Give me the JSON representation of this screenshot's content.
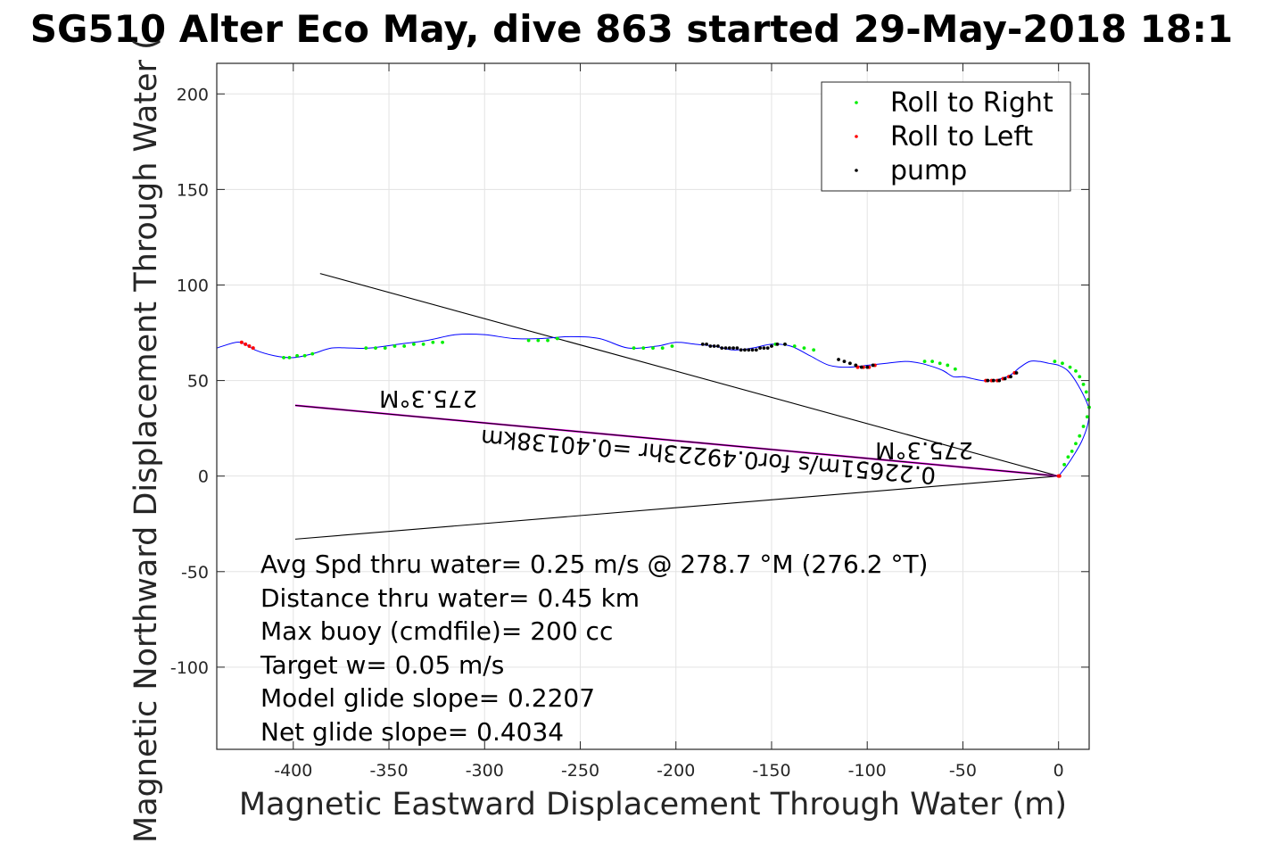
{
  "chart_data": {
    "type": "scatter",
    "title": "SG510 Alter Eco May, dive 863 started 29-May-2018 18:1",
    "xlabel": "Magnetic Eastward Displacement Through Water (m)",
    "ylabel": "Magnetic Northward Displacement Through Water (",
    "xlim": [
      -440,
      16
    ],
    "ylim": [
      -143,
      216
    ],
    "xticks": [
      -400,
      -350,
      -300,
      -250,
      -200,
      -150,
      -100,
      -50,
      0
    ],
    "yticks": [
      200,
      150,
      100,
      50,
      0,
      -50,
      -100
    ],
    "grid": true,
    "legend_position": "top-right",
    "legend": [
      {
        "name": "Roll to Right",
        "color": "#00ee00"
      },
      {
        "name": "Roll to Left",
        "color": "#ff0000"
      },
      {
        "name": "pump",
        "color": "#000000"
      }
    ],
    "track": {
      "name": "dive track",
      "color": "#0000ff",
      "x": [
        -440,
        -430,
        -425,
        -420,
        -410,
        -400,
        -390,
        -380,
        -370,
        -360,
        -345,
        -330,
        -315,
        -300,
        -285,
        -270,
        -255,
        -240,
        -225,
        -210,
        -200,
        -190,
        -180,
        -170,
        -160,
        -150,
        -140,
        -130,
        -120,
        -110,
        -100,
        -90,
        -80,
        -72,
        -65,
        -60,
        -55,
        -50,
        -45,
        -40,
        -35,
        -30,
        -25,
        -20,
        -15,
        -10,
        -5,
        0,
        5,
        10,
        15,
        16,
        15,
        12,
        8,
        4,
        0
      ],
      "y": [
        67,
        70,
        69,
        66,
        63,
        62,
        64,
        67,
        67,
        67,
        69,
        71,
        74,
        74,
        72,
        72,
        73,
        72,
        67,
        68,
        70,
        69,
        68,
        66,
        67,
        69,
        68,
        63,
        58,
        57,
        58,
        59,
        60,
        59,
        57,
        55,
        52,
        52,
        51,
        50,
        50,
        51,
        53,
        57,
        60,
        60,
        59,
        58,
        55,
        48,
        38,
        33,
        26,
        18,
        11,
        5,
        0
      ]
    },
    "roll_right": {
      "color": "#00ee00",
      "x": [
        -405,
        -402,
        -398,
        -394,
        -390,
        -362,
        -357,
        -352,
        -347,
        -342,
        -337,
        -332,
        -327,
        -322,
        -277,
        -272,
        -267,
        -262,
        -222,
        -217,
        -212,
        -207,
        -202,
        -148,
        -143,
        -138,
        -133,
        -128,
        -70,
        -66,
        -62,
        -58,
        -54,
        -2,
        2,
        6,
        9,
        11,
        13,
        14.5,
        15.5,
        16,
        15,
        13,
        11,
        9,
        7,
        5,
        3
      ],
      "y": [
        62,
        62,
        63,
        63,
        64,
        67,
        67,
        67,
        68,
        68,
        69,
        69,
        70,
        70,
        71,
        71,
        71,
        72,
        67,
        67,
        67,
        67,
        68,
        69,
        69,
        68,
        67,
        66,
        60,
        60,
        59,
        58,
        56,
        60,
        59,
        57,
        55,
        52,
        48,
        44,
        40,
        36,
        31,
        26,
        21,
        17,
        13,
        10,
        6
      ]
    },
    "roll_left": {
      "color": "#ff0000",
      "x": [
        -427,
        -425,
        -423,
        -421,
        -105,
        -102,
        -99,
        -96,
        -38,
        -35,
        -32,
        -29,
        -26,
        -23,
        0,
        0.5
      ],
      "y": [
        70,
        69,
        68,
        67,
        57,
        57,
        57,
        58,
        50,
        50,
        50,
        51,
        52,
        54,
        0,
        0
      ]
    },
    "pump": {
      "color": "#000000",
      "x": [
        -186,
        -184,
        -182,
        -180,
        -178,
        -176,
        -174,
        -172,
        -170,
        -168,
        -166,
        -164,
        -162,
        -160,
        -158,
        -156,
        -154,
        -152,
        -150,
        -147,
        -143,
        -115,
        -112,
        -109,
        -106,
        -103,
        -100,
        -97,
        -37,
        -34,
        -31,
        -28,
        -25,
        -22
      ],
      "y": [
        69,
        69,
        68,
        68,
        68,
        67,
        67,
        67,
        67,
        67,
        66,
        66,
        66,
        66,
        66,
        67,
        67,
        67,
        68,
        69,
        69,
        61,
        60,
        59,
        58,
        57,
        57,
        58,
        50,
        50,
        50,
        51,
        52,
        54
      ]
    },
    "lines": [
      {
        "name": "upper-bound-line",
        "color": "#000000",
        "x": [
          0,
          -386
        ],
        "y": [
          0,
          106
        ]
      },
      {
        "name": "lower-bound-line",
        "color": "#000000",
        "x": [
          0,
          -399
        ],
        "y": [
          0,
          -33
        ]
      },
      {
        "name": "mean-heading-line",
        "color": "#ff00ff",
        "x": [
          0,
          -399
        ],
        "y": [
          0,
          37
        ]
      },
      {
        "name": "model-heading-line",
        "color": "#000000",
        "x": [
          0,
          -399
        ],
        "y": [
          0,
          37
        ]
      }
    ],
    "flipped_labels": {
      "heading_far": "275.3°M",
      "heading_near": "275.3°M",
      "speed": "0.22651m/s for0.49223hr =0.40138km"
    },
    "annotations": [
      "Avg Spd thru water=  0.25 m/s @ 278.7 °M (276.2 °T)",
      "Distance thru water=  0.45 km",
      "Max buoy (cmdfile)= 200 cc",
      "Target w= 0.05 m/s",
      "Model glide slope= 0.2207",
      "Net glide slope= 0.4034"
    ]
  }
}
